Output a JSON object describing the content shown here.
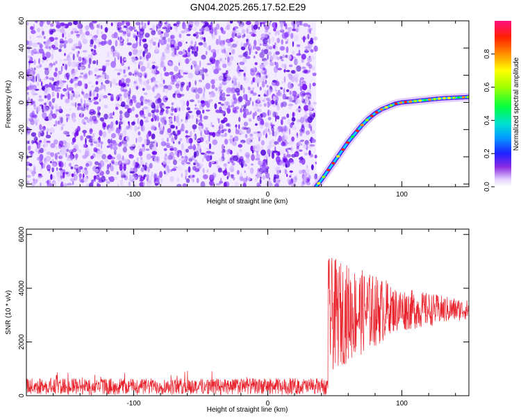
{
  "title": "GN04.2025.265.17.52.E29",
  "colors": {
    "noise": "#6a00f0",
    "signal_trace": "#e8202a",
    "frame": "#000000"
  },
  "chart_data": [
    {
      "type": "heatmap",
      "title": "GN04.2025.265.17.52.E29",
      "xlabel": "Height of straight line (km)",
      "ylabel": "Frequency (Hz)",
      "xlim": [
        -180,
        150
      ],
      "ylim": [
        -62,
        60
      ],
      "xticks": [
        -100,
        0,
        100
      ],
      "yticks": [
        -60,
        -40,
        -20,
        0,
        20,
        40,
        60
      ],
      "noise_region_x": [
        -180,
        36
      ],
      "signal_curve": {
        "description_points_x": [
          36,
          40,
          45,
          50,
          55,
          60,
          65,
          70,
          75,
          80,
          85,
          90,
          95,
          100,
          110,
          120,
          130,
          140,
          150
        ],
        "description_points_y": [
          -62,
          -57,
          -50,
          -43,
          -36,
          -29,
          -23,
          -17,
          -12,
          -8,
          -5,
          -3,
          -1,
          0,
          1,
          2,
          3,
          3.5,
          4
        ]
      },
      "colorbar": {
        "label": "Normalized spectral amplitude",
        "range": [
          0,
          1
        ],
        "ticks": [
          0.0,
          0.2,
          0.4,
          0.6,
          0.8
        ]
      }
    },
    {
      "type": "line",
      "xlabel": "Height of straight line (km)",
      "ylabel": "SNR (10 * v/v)",
      "xlim": [
        -180,
        150
      ],
      "ylim": [
        0,
        6200
      ],
      "xticks": [
        -100,
        0,
        100
      ],
      "yticks": [
        0,
        2000,
        4000,
        6000
      ],
      "segments": [
        {
          "x": [
            -180,
            45
          ],
          "baseline": 350,
          "amplitude": 300
        },
        {
          "x": [
            45,
            90
          ],
          "baseline": 2800,
          "amplitude": 1800
        },
        {
          "x": [
            90,
            150
          ],
          "baseline": 3200,
          "amplitude": 500
        }
      ]
    }
  ]
}
